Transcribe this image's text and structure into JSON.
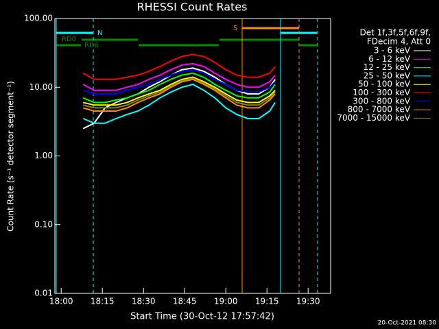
{
  "chart_data": {
    "type": "line",
    "title": "RHESSI Count Rates",
    "x_label": "Start Time (30-Oct-12 17:57:42)",
    "y_label": "Count Rate (s⁻¹ detector segment⁻¹)",
    "log_y": true,
    "xlim": [
      "17:57:42",
      "19:38:12"
    ],
    "xticks": [
      "18:00",
      "18:15",
      "18:30",
      "18:45",
      "19:00",
      "19:15",
      "19:30"
    ],
    "ylim": [
      0.01,
      100
    ],
    "yticks": [
      {
        "value": 0.01,
        "label": "0.01"
      },
      {
        "value": 0.1,
        "label": "0.10"
      },
      {
        "value": 1,
        "label": "1.00"
      },
      {
        "value": 10,
        "label": "10.00"
      },
      {
        "value": 100,
        "label": "100.00"
      }
    ],
    "legend_header": [
      "Det 1f,3f,5f,6f,9f,",
      "FDecim 4, Att 0"
    ],
    "annotations": [
      "N",
      "RD0",
      "RD6",
      "S"
    ],
    "footer": "20-Oct-2021 08:30",
    "x": [
      "18:08",
      "18:12",
      "18:16",
      "18:20",
      "18:24",
      "18:28",
      "18:32",
      "18:36",
      "18:40",
      "18:44",
      "18:48",
      "18:52",
      "18:56",
      "19:00",
      "19:04",
      "19:08",
      "19:12",
      "19:16",
      "19:18"
    ],
    "series": [
      {
        "name": "3 - 6 keV",
        "color": "#ffffff",
        "values": [
          2.5,
          3,
          5,
          6,
          7,
          8,
          10,
          12,
          15,
          18,
          19,
          17,
          14,
          11,
          9,
          8,
          8,
          10,
          13
        ]
      },
      {
        "name": "6 - 12 keV",
        "color": "#ff00ff",
        "values": [
          11,
          9,
          9,
          9,
          10,
          11,
          13,
          15,
          18,
          21,
          22,
          20,
          16,
          13,
          11,
          10,
          10,
          12,
          15
        ]
      },
      {
        "name": "12 - 25 keV",
        "color": "#00ff00",
        "values": [
          7,
          6,
          6,
          6.5,
          7,
          8,
          9,
          11,
          13,
          15,
          16,
          14,
          11,
          9,
          7.5,
          7,
          7,
          8.5,
          11
        ]
      },
      {
        "name": "25 - 50 keV",
        "color": "#00ffff",
        "values": [
          3.5,
          3,
          3,
          3.5,
          4,
          4.5,
          5.5,
          7,
          8.5,
          10,
          11,
          9,
          7,
          5,
          4,
          3.5,
          3.5,
          4.5,
          6
        ]
      },
      {
        "name": "50 - 100 keV",
        "color": "#ffff00",
        "values": [
          6,
          5.5,
          5.5,
          5.5,
          6,
          7,
          8,
          9,
          11,
          13,
          14,
          12,
          10,
          8,
          6.5,
          6,
          6,
          7.5,
          9
        ]
      },
      {
        "name": "100 - 300 keV",
        "color": "#ff0000",
        "values": [
          16,
          13,
          13,
          13,
          14,
          15,
          17,
          20,
          24,
          28,
          30,
          28,
          23,
          18,
          15,
          14,
          14,
          16,
          20
        ]
      },
      {
        "name": "300 - 800 keV",
        "color": "#0000ff",
        "values": [
          9,
          8,
          8,
          8,
          9,
          10,
          11,
          13,
          15,
          17,
          18,
          16,
          13,
          11,
          9,
          8.5,
          8.5,
          10,
          12
        ]
      },
      {
        "name": "800 - 7000 keV",
        "color": "#ff8c00",
        "values": [
          5,
          4.5,
          4.5,
          4.5,
          5,
          6,
          7,
          8,
          10,
          12,
          13,
          11,
          9,
          7,
          5.5,
          5,
          5,
          6.5,
          8
        ]
      },
      {
        "name": "7000 - 15000 keV",
        "color": "#8b8b00",
        "values": [
          5.5,
          5,
          5,
          5,
          5.5,
          6.5,
          7.5,
          8.5,
          10.5,
          12.5,
          13.5,
          11.5,
          9.5,
          7.5,
          6,
          5.5,
          5.5,
          7,
          8.5
        ]
      }
    ]
  }
}
